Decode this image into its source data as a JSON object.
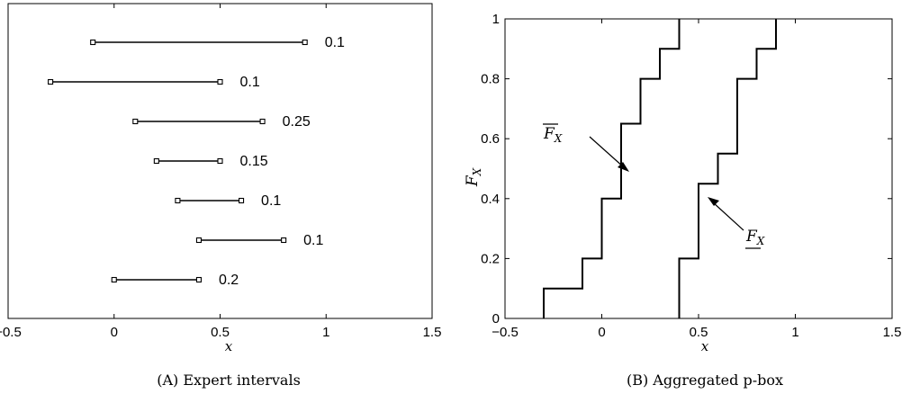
{
  "chart_data": [
    {
      "type": "interval",
      "panel_caption": "(A) Expert intervals",
      "xlabel": "x",
      "xlim": [
        -0.5,
        1.5
      ],
      "xticks": [
        -0.5,
        0,
        0.5,
        1,
        1.5
      ],
      "xtick_labels": [
        "−0.5",
        "0",
        "0.5",
        "1",
        "1.5"
      ],
      "intervals": [
        {
          "low": -0.1,
          "high": 0.9,
          "weight": "0.1"
        },
        {
          "low": -0.3,
          "high": 0.5,
          "weight": "0.1"
        },
        {
          "low": 0.1,
          "high": 0.7,
          "weight": "0.25"
        },
        {
          "low": 0.2,
          "high": 0.5,
          "weight": "0.15"
        },
        {
          "low": 0.3,
          "high": 0.6,
          "weight": "0.1"
        },
        {
          "low": 0.4,
          "high": 0.8,
          "weight": "0.1"
        },
        {
          "low": 0.0,
          "high": 0.4,
          "weight": "0.2"
        }
      ]
    },
    {
      "type": "line",
      "panel_caption": "(B) Aggregated p-box",
      "xlabel": "x",
      "ylabel": "F",
      "ylabel_sub": "X",
      "xlim": [
        -0.5,
        1.5
      ],
      "ylim": [
        0,
        1
      ],
      "xticks": [
        -0.5,
        0,
        0.5,
        1,
        1.5
      ],
      "xtick_labels": [
        "−0.5",
        "0",
        "0.5",
        "1",
        "1.5"
      ],
      "yticks": [
        0,
        0.2,
        0.4,
        0.6,
        0.8,
        1
      ],
      "ytick_labels": [
        "0",
        "0.2",
        "0.4",
        "0.6",
        "0.8",
        "1"
      ],
      "series": [
        {
          "name": "upper",
          "label_main": "F",
          "label_sub": "X",
          "x": [
            -0.3,
            -0.3,
            -0.1,
            -0.1,
            0.0,
            0.0,
            0.1,
            0.1,
            0.2,
            0.2,
            0.3,
            0.3,
            0.4,
            0.4
          ],
          "y": [
            0.0,
            0.1,
            0.1,
            0.2,
            0.2,
            0.4,
            0.4,
            0.65,
            0.65,
            0.8,
            0.8,
            0.9,
            0.9,
            1.0
          ]
        },
        {
          "name": "lower",
          "label_main": "F",
          "label_sub": "X",
          "x": [
            0.4,
            0.4,
            0.5,
            0.5,
            0.6,
            0.6,
            0.7,
            0.7,
            0.8,
            0.8,
            0.9,
            0.9
          ],
          "y": [
            0.0,
            0.2,
            0.2,
            0.45,
            0.45,
            0.55,
            0.55,
            0.8,
            0.8,
            0.9,
            0.9,
            1.0
          ]
        }
      ]
    }
  ]
}
